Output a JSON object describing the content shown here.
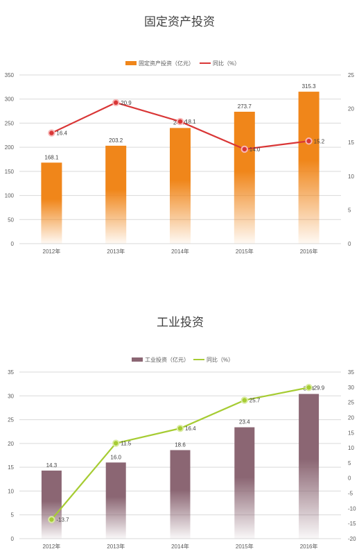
{
  "chart_data": [
    {
      "type": "bar",
      "title": "固定资产投资",
      "categories": [
        "2012年",
        "2013年",
        "2014年",
        "2015年",
        "2016年"
      ],
      "series": [
        {
          "name": "固定资产投资（亿元）",
          "type": "bar",
          "axis": "left",
          "values": [
            168.1,
            203.2,
            240.0,
            273.7,
            315.3
          ],
          "labels": [
            "168.1",
            "203.2",
            "240.0",
            "273.7",
            "315.3"
          ],
          "color": "#F0861A"
        },
        {
          "name": "同比（%）",
          "type": "line",
          "axis": "right",
          "values": [
            16.4,
            20.9,
            18.1,
            14.0,
            15.2
          ],
          "labels": [
            "16.4",
            "20.9",
            "18.1",
            "14.0",
            "15.2"
          ],
          "color": "#D93636"
        }
      ],
      "ylim_left": [
        0,
        350
      ],
      "yticks_left": [
        "0",
        "50",
        "100",
        "150",
        "200",
        "250",
        "300",
        "350"
      ],
      "ylim_right": [
        0,
        25
      ],
      "yticks_right": [
        "0",
        "5",
        "10",
        "15",
        "20",
        "25"
      ],
      "legend": "top-center",
      "grid": true
    },
    {
      "type": "bar",
      "title": "工业投资",
      "categories": [
        "2012年",
        "2013年",
        "2014年",
        "2015年",
        "2016年"
      ],
      "series": [
        {
          "name": "工业投资（亿元）",
          "type": "bar",
          "axis": "left",
          "values": [
            14.3,
            16.0,
            18.6,
            23.4,
            30.4
          ],
          "labels": [
            "14.3",
            "16.0",
            "18.6",
            "23.4",
            "30.4"
          ],
          "color": "#8B6673"
        },
        {
          "name": "同比（%）",
          "type": "line",
          "axis": "right",
          "values": [
            -13.7,
            11.5,
            16.4,
            25.7,
            29.9
          ],
          "labels": [
            "-13.7",
            "11.5",
            "16.4",
            "25.7",
            "29.9"
          ],
          "color": "#A6CC33"
        }
      ],
      "ylim_left": [
        0,
        35
      ],
      "yticks_left": [
        "0",
        "5",
        "10",
        "15",
        "20",
        "25",
        "30",
        "35"
      ],
      "ylim_right": [
        -20,
        35
      ],
      "yticks_right": [
        "-20",
        "-15",
        "-10",
        "-5",
        "0",
        "5",
        "10",
        "15",
        "20",
        "25",
        "30",
        "35"
      ],
      "legend": "top-center",
      "grid": true
    }
  ]
}
